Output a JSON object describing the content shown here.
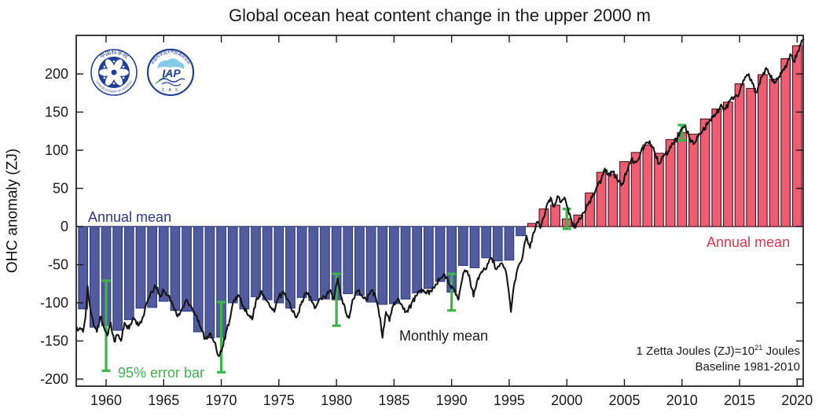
{
  "title": "Global ocean heat content change in the upper 2000 m",
  "labels": {
    "annual_mean_left": "Annual mean",
    "annual_mean_right": "Annual mean",
    "monthly_mean": "Monthly mean",
    "error_bar": "95% error bar",
    "unit_note_base": "1 Zetta Joules (ZJ)=10",
    "unit_note_exp": "21",
    "unit_note_tail": " Joules",
    "baseline_note": "Baseline 1981-2010"
  },
  "logos": {
    "cas": {
      "ring_top_text": "中国科学院",
      "ring_bottom_text": "CHINESE ACADEMY OF SCIENCES"
    },
    "iap": {
      "ring_top_text": "中国科学院大气物理研究所",
      "main_text": "IAP",
      "sub_text": "C A S"
    }
  },
  "colors": {
    "bar_negative_fill": "#515b9e",
    "bar_negative_stroke": "#2e3c85",
    "bar_positive_fill": "#ee5d72",
    "bar_positive_stroke": "#47121c",
    "monthly_line": "#161616",
    "error_bar_green": "#3cb44a",
    "axis": "#1a1a1a",
    "annual_left_text": "#2b3990",
    "annual_right_text": "#e0354b",
    "logo_blue": "#21409a",
    "logo_light_blue": "#85cbe9",
    "logo_green": "#2da23c"
  },
  "chart_data": {
    "type": "bar+line",
    "title": "Global ocean heat content change in the upper 2000 m",
    "ylabel": "OHC anomaly (ZJ)",
    "xlabel": "",
    "xlim": [
      1957.4,
      2020.55
    ],
    "ylim": [
      -209,
      250
    ],
    "x_ticks": [
      1960,
      1965,
      1970,
      1975,
      1980,
      1985,
      1990,
      1995,
      2000,
      2005,
      2010,
      2015,
      2020
    ],
    "y_ticks": [
      -200,
      -150,
      -100,
      -50,
      0,
      50,
      100,
      150,
      200
    ],
    "grid": false,
    "bars": {
      "name": "Annual mean",
      "year_start": 1958,
      "values": [
        -108,
        -132,
        -130,
        -136,
        -122,
        -107,
        -106,
        -98,
        -110,
        -111,
        -138,
        -146,
        -145,
        -100,
        -108,
        -92,
        -96,
        -100,
        -107,
        -93,
        -97,
        -95,
        -96,
        -88,
        -90,
        -99,
        -102,
        -101,
        -95,
        -87,
        -81,
        -72,
        -86,
        -51,
        -54,
        -41,
        -45,
        -44,
        -12,
        4,
        23,
        28,
        10,
        15,
        44,
        71,
        68,
        85,
        97,
        107,
        96,
        114,
        123,
        121,
        141,
        154,
        163,
        187,
        181,
        199,
        193,
        220,
        237
      ]
    },
    "error_bars": {
      "name": "95% error bar",
      "points": [
        {
          "year": 1960,
          "center": -130,
          "half": 59
        },
        {
          "year": 1970,
          "center": -145,
          "half": 46
        },
        {
          "year": 1980,
          "center": -96,
          "half": 34
        },
        {
          "year": 1990,
          "center": -86,
          "half": 24
        },
        {
          "year": 2000,
          "center": 10,
          "half": 13
        },
        {
          "year": 2010,
          "center": 123,
          "half": 10
        }
      ]
    },
    "monthly_mean_keypoints": [
      [
        1957.45,
        -132
      ],
      [
        1958.0,
        -138
      ],
      [
        1958.2,
        -120
      ],
      [
        1958.4,
        -78
      ],
      [
        1958.6,
        -105
      ],
      [
        1958.9,
        -128
      ],
      [
        1959.2,
        -138
      ],
      [
        1959.5,
        -118
      ],
      [
        1959.8,
        -132
      ],
      [
        1960.1,
        -143
      ],
      [
        1960.4,
        -126
      ],
      [
        1960.7,
        -150
      ],
      [
        1961.0,
        -142
      ],
      [
        1961.3,
        -150
      ],
      [
        1961.6,
        -126
      ],
      [
        1962.0,
        -134
      ],
      [
        1962.4,
        -120
      ],
      [
        1962.8,
        -130
      ],
      [
        1963.2,
        -118
      ],
      [
        1963.6,
        -98
      ],
      [
        1964.0,
        -86
      ],
      [
        1964.3,
        -78
      ],
      [
        1964.7,
        -92
      ],
      [
        1965.0,
        -83
      ],
      [
        1965.4,
        -90
      ],
      [
        1965.8,
        -103
      ],
      [
        1966.2,
        -118
      ],
      [
        1966.6,
        -108
      ],
      [
        1967.0,
        -96
      ],
      [
        1967.4,
        -105
      ],
      [
        1967.8,
        -116
      ],
      [
        1968.2,
        -132
      ],
      [
        1968.6,
        -147
      ],
      [
        1969.0,
        -140
      ],
      [
        1969.4,
        -152
      ],
      [
        1969.8,
        -170
      ],
      [
        1970.1,
        -158
      ],
      [
        1970.4,
        -140
      ],
      [
        1970.8,
        -118
      ],
      [
        1971.1,
        -96
      ],
      [
        1971.5,
        -90
      ],
      [
        1971.9,
        -104
      ],
      [
        1972.3,
        -116
      ],
      [
        1972.7,
        -122
      ],
      [
        1973.0,
        -98
      ],
      [
        1973.4,
        -86
      ],
      [
        1973.8,
        -94
      ],
      [
        1974.2,
        -104
      ],
      [
        1974.6,
        -112
      ],
      [
        1975.0,
        -92
      ],
      [
        1975.4,
        -86
      ],
      [
        1975.8,
        -96
      ],
      [
        1976.2,
        -112
      ],
      [
        1976.6,
        -117
      ],
      [
        1977.0,
        -98
      ],
      [
        1977.4,
        -86
      ],
      [
        1977.8,
        -96
      ],
      [
        1978.2,
        -106
      ],
      [
        1978.6,
        -94
      ],
      [
        1979.0,
        -92
      ],
      [
        1979.4,
        -84
      ],
      [
        1979.8,
        -94
      ],
      [
        1980.1,
        -68
      ],
      [
        1980.4,
        -92
      ],
      [
        1980.8,
        -112
      ],
      [
        1981.1,
        -120
      ],
      [
        1981.4,
        -96
      ],
      [
        1981.8,
        -84
      ],
      [
        1982.2,
        -90
      ],
      [
        1982.6,
        -97
      ],
      [
        1983.0,
        -84
      ],
      [
        1983.4,
        -92
      ],
      [
        1983.8,
        -120
      ],
      [
        1984.0,
        -146
      ],
      [
        1984.3,
        -112
      ],
      [
        1984.6,
        -124
      ],
      [
        1985.0,
        -100
      ],
      [
        1985.4,
        -95
      ],
      [
        1985.8,
        -108
      ],
      [
        1986.2,
        -112
      ],
      [
        1986.6,
        -98
      ],
      [
        1987.0,
        -90
      ],
      [
        1987.4,
        -82
      ],
      [
        1987.8,
        -88
      ],
      [
        1988.2,
        -84
      ],
      [
        1988.6,
        -76
      ],
      [
        1989.0,
        -68
      ],
      [
        1989.4,
        -63
      ],
      [
        1989.8,
        -76
      ],
      [
        1990.2,
        -82
      ],
      [
        1990.6,
        -96
      ],
      [
        1991.0,
        -62
      ],
      [
        1991.3,
        -58
      ],
      [
        1991.6,
        -70
      ],
      [
        1991.9,
        -92
      ],
      [
        1992.2,
        -72
      ],
      [
        1992.5,
        -62
      ],
      [
        1992.9,
        -56
      ],
      [
        1993.2,
        -48
      ],
      [
        1993.5,
        -42
      ],
      [
        1993.9,
        -56
      ],
      [
        1994.3,
        -48
      ],
      [
        1994.7,
        -58
      ],
      [
        1995.0,
        -90
      ],
      [
        1995.15,
        -112
      ],
      [
        1995.4,
        -78
      ],
      [
        1995.8,
        -52
      ],
      [
        1996.2,
        -36
      ],
      [
        1996.5,
        -12
      ],
      [
        1996.8,
        -28
      ],
      [
        1997.1,
        -8
      ],
      [
        1997.4,
        6
      ],
      [
        1997.7,
        -2
      ],
      [
        1998.0,
        12
      ],
      [
        1998.3,
        30
      ],
      [
        1998.6,
        38
      ],
      [
        1998.9,
        26
      ],
      [
        1999.2,
        40
      ],
      [
        1999.5,
        32
      ],
      [
        1999.8,
        38
      ],
      [
        2000.1,
        24
      ],
      [
        2000.4,
        8
      ],
      [
        2000.7,
        -2
      ],
      [
        2001.0,
        6
      ],
      [
        2001.4,
        18
      ],
      [
        2001.8,
        28
      ],
      [
        2002.2,
        38
      ],
      [
        2002.6,
        52
      ],
      [
        2003.0,
        62
      ],
      [
        2003.3,
        76
      ],
      [
        2003.6,
        68
      ],
      [
        2004.0,
        72
      ],
      [
        2004.4,
        60
      ],
      [
        2004.8,
        56
      ],
      [
        2005.2,
        72
      ],
      [
        2005.6,
        88
      ],
      [
        2006.0,
        84
      ],
      [
        2006.4,
        96
      ],
      [
        2006.8,
        108
      ],
      [
        2007.2,
        112
      ],
      [
        2007.6,
        98
      ],
      [
        2008.0,
        82
      ],
      [
        2008.4,
        92
      ],
      [
        2008.8,
        98
      ],
      [
        2009.2,
        108
      ],
      [
        2009.6,
        116
      ],
      [
        2010.0,
        128
      ],
      [
        2010.3,
        132
      ],
      [
        2010.6,
        118
      ],
      [
        2011.0,
        108
      ],
      [
        2011.4,
        118
      ],
      [
        2011.8,
        126
      ],
      [
        2012.2,
        134
      ],
      [
        2012.6,
        144
      ],
      [
        2013.0,
        148
      ],
      [
        2013.4,
        160
      ],
      [
        2013.8,
        154
      ],
      [
        2014.2,
        166
      ],
      [
        2014.6,
        170
      ],
      [
        2015.0,
        176
      ],
      [
        2015.4,
        192
      ],
      [
        2015.8,
        200
      ],
      [
        2016.1,
        188
      ],
      [
        2016.4,
        176
      ],
      [
        2016.7,
        186
      ],
      [
        2017.0,
        198
      ],
      [
        2017.3,
        208
      ],
      [
        2017.6,
        200
      ],
      [
        2018.0,
        188
      ],
      [
        2018.4,
        196
      ],
      [
        2018.8,
        206
      ],
      [
        2019.1,
        212
      ],
      [
        2019.4,
        226
      ],
      [
        2019.7,
        216
      ],
      [
        2020.0,
        228
      ],
      [
        2020.3,
        238
      ],
      [
        2020.55,
        245
      ]
    ],
    "legend_position": "none"
  }
}
